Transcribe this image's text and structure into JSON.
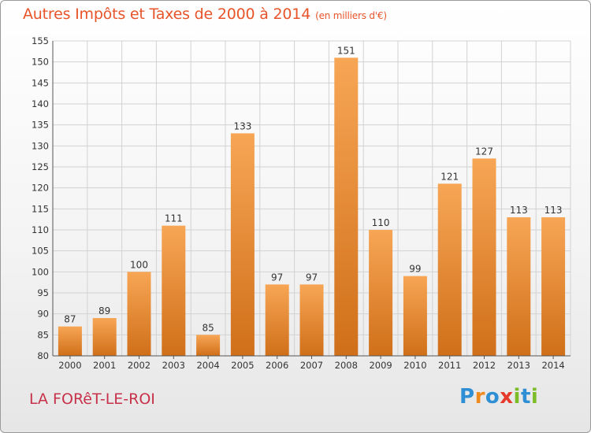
{
  "header": {
    "title": "Autres Impôts et Taxes de 2000 à 2014",
    "unit": "(en milliers d'€)"
  },
  "footer": {
    "commune": "LA FORêT-LE-ROI",
    "brand": "Proxiti",
    "brand_letters": [
      "P",
      "r",
      "o",
      "x",
      "i",
      "t",
      "i"
    ],
    "brand_colors": [
      "#2f8fd4",
      "#f08a1c",
      "#2f8fd4",
      "#e63a2b",
      "#7cbc26",
      "#2f8fd4",
      "#7cbc26"
    ]
  },
  "colors": {
    "bar_top": "#f7a655",
    "bar_bottom": "#d06f19",
    "title": "#e8542a",
    "commune": "#c8314a"
  },
  "chart_data": {
    "type": "bar",
    "title": "Autres Impôts et Taxes de 2000 à 2014",
    "subtitle": "(en milliers d'€)",
    "xlabel": "",
    "ylabel": "",
    "categories": [
      "2000",
      "2001",
      "2002",
      "2003",
      "2004",
      "2005",
      "2006",
      "2007",
      "2008",
      "2009",
      "2010",
      "2011",
      "2012",
      "2013",
      "2014"
    ],
    "values": [
      87,
      89,
      100,
      111,
      85,
      133,
      97,
      97,
      151,
      110,
      99,
      121,
      127,
      113,
      113
    ],
    "ylim": [
      80,
      155
    ],
    "yticks": [
      80,
      85,
      90,
      95,
      100,
      105,
      110,
      115,
      120,
      125,
      130,
      135,
      140,
      145,
      150,
      155
    ],
    "grid": true,
    "data_labels": true
  }
}
